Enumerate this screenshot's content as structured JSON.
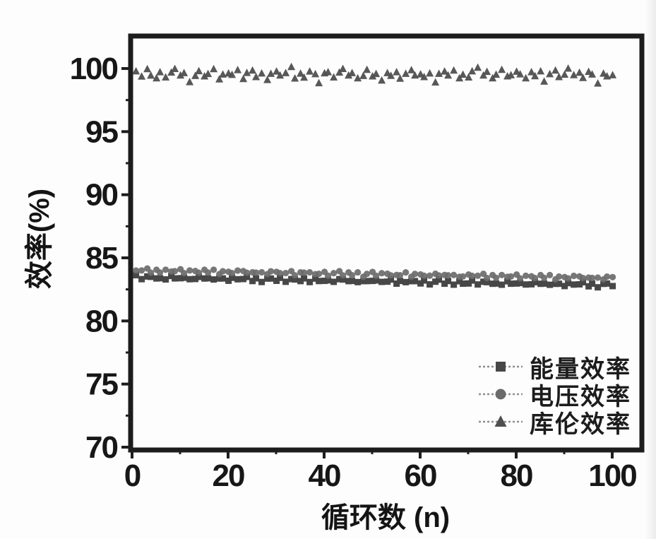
{
  "figure": {
    "background": "#fdfdfd",
    "axis_color": "#1d1d1d",
    "tick_label_color": "#171717"
  },
  "chart_data": {
    "type": "scatter",
    "title": "",
    "xlabel": "循环数 (n)",
    "ylabel": "效率(%)",
    "xlim": [
      0,
      106
    ],
    "ylim": [
      70,
      102.5
    ],
    "x_ticks": [
      0,
      20,
      40,
      60,
      80,
      100
    ],
    "x_minor_ticks": [
      10,
      30,
      50,
      70,
      90
    ],
    "y_ticks": [
      70,
      75,
      80,
      85,
      90,
      95,
      100
    ],
    "y_minor_ticks": [
      72.5,
      77.5,
      82.5,
      87.5,
      92.5,
      97.5
    ],
    "grid": false,
    "legend_position": "lower right",
    "x_start": 1,
    "x_step": 1,
    "series": [
      {
        "name": "能量效率",
        "marker": "square",
        "color": "#474747",
        "values": [
          83.54,
          83.34,
          83.47,
          83.55,
          83.34,
          83.47,
          83.29,
          83.48,
          83.4,
          83.33,
          83.48,
          83.28,
          83.41,
          83.49,
          83.28,
          83.41,
          83.23,
          83.42,
          83.34,
          83.27,
          83.42,
          83.22,
          83.35,
          83.43,
          83.22,
          83.35,
          83.17,
          83.36,
          83.28,
          83.21,
          83.36,
          83.16,
          83.29,
          83.37,
          83.16,
          83.29,
          83.11,
          83.3,
          83.22,
          83.15,
          83.3,
          83.1,
          83.23,
          83.31,
          83.1,
          83.23,
          83.05,
          83.24,
          83.16,
          83.09,
          83.24,
          83.04,
          83.17,
          83.25,
          83.04,
          83.17,
          82.99,
          83.18,
          83.1,
          83.03,
          83.18,
          82.98,
          83.11,
          83.19,
          82.98,
          83.11,
          82.93,
          83.12,
          83.04,
          82.97,
          83.12,
          82.92,
          83.05,
          83.13,
          82.92,
          83.05,
          82.87,
          83.06,
          82.98,
          82.91,
          83.06,
          82.86,
          82.99,
          83.07,
          82.86,
          82.99,
          82.81,
          83.0,
          82.92,
          82.85,
          83.0,
          82.8,
          82.93,
          83.01,
          82.8,
          82.93,
          82.75,
          82.94,
          82.88,
          82.79
        ]
      },
      {
        "name": "电压效率",
        "marker": "circle",
        "color": "#6b6b6b",
        "values": [
          83.91,
          84.03,
          84.1,
          83.88,
          84.03,
          83.92,
          84.06,
          83.83,
          83.97,
          84.04,
          83.85,
          83.97,
          84.04,
          83.82,
          83.97,
          83.86,
          84.0,
          83.77,
          83.91,
          83.98,
          83.79,
          83.91,
          83.98,
          83.76,
          83.91,
          83.8,
          83.94,
          83.71,
          83.85,
          83.92,
          83.73,
          83.85,
          83.92,
          83.7,
          83.85,
          83.74,
          83.88,
          83.65,
          83.79,
          83.86,
          83.67,
          83.79,
          83.86,
          83.64,
          83.79,
          83.68,
          83.82,
          83.59,
          83.73,
          83.8,
          83.61,
          83.73,
          83.8,
          83.58,
          83.73,
          83.62,
          83.76,
          83.53,
          83.67,
          83.74,
          83.55,
          83.67,
          83.74,
          83.52,
          83.67,
          83.56,
          83.7,
          83.47,
          83.61,
          83.68,
          83.49,
          83.61,
          83.68,
          83.46,
          83.61,
          83.5,
          83.64,
          83.41,
          83.55,
          83.62,
          83.43,
          83.55,
          83.62,
          83.4,
          83.55,
          83.44,
          83.58,
          83.35,
          83.49,
          83.56,
          83.37,
          83.49,
          83.56,
          83.34,
          83.49,
          83.38,
          83.52,
          83.29,
          83.43,
          83.5
        ]
      },
      {
        "name": "库伦效率",
        "marker": "triangle",
        "color": "#4f4f4f",
        "values": [
          99.7,
          99.4,
          99.9,
          99.5,
          99.2,
          99.8,
          99.3,
          99.6,
          100.0,
          99.4,
          99.7,
          98.9,
          99.5,
          99.8,
          99.3,
          99.6,
          99.9,
          99.2,
          99.5,
          99.7,
          99.5,
          99.8,
          99.2,
          99.6,
          99.9,
          99.3,
          99.7,
          99.1,
          99.5,
          99.8,
          99.4,
          99.7,
          100.1,
          99.3,
          99.6,
          99.2,
          99.8,
          99.5,
          98.9,
          99.6,
          99.8,
          99.3,
          99.6,
          100.0,
          99.4,
          99.7,
          99.2,
          99.5,
          99.9,
          99.3,
          99.6,
          99.0,
          99.7,
          99.4,
          99.8,
          99.2,
          99.5,
          99.9,
          99.4,
          99.6,
          99.3,
          99.7,
          98.9,
          99.5,
          99.8,
          99.4,
          99.9,
          99.2,
          99.6,
          99.3,
          99.7,
          100.1,
          99.4,
          99.8,
          99.2,
          99.6,
          99.9,
          99.3,
          99.5,
          99.7,
          99.6,
          99.2,
          99.8,
          99.4,
          99.7,
          99.0,
          99.5,
          99.9,
          99.3,
          99.6,
          100.0,
          99.4,
          99.7,
          99.2,
          99.8,
          99.5,
          98.9,
          99.6,
          99.3,
          99.5
        ]
      }
    ]
  },
  "legend": {
    "line_color": "#8e8e8e"
  }
}
